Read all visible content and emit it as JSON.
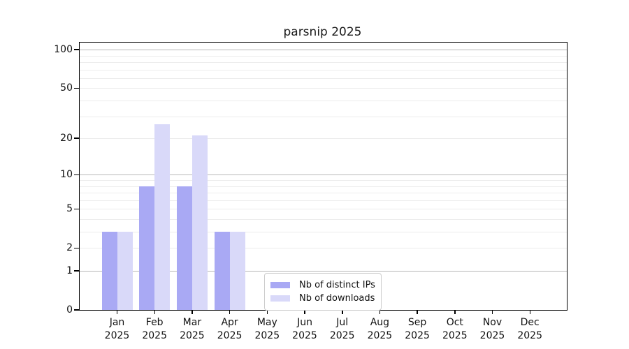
{
  "title": "parsnip 2025",
  "colors": {
    "distinct_ips": "#a9a9f4",
    "downloads": "#d9d9f9",
    "grid_major": "#b8b8b8",
    "grid_minor": "#ececec",
    "axis": "#000000",
    "legend_border": "#cccccc"
  },
  "chart_data": {
    "type": "bar",
    "title": "parsnip 2025",
    "categories": [
      "Jan",
      "Feb",
      "Mar",
      "Apr",
      "May",
      "Jun",
      "Jul",
      "Aug",
      "Sep",
      "Oct",
      "Nov",
      "Dec"
    ],
    "x_year_label": "2025",
    "series": [
      {
        "name": "Nb of distinct IPs",
        "color_key": "distinct_ips",
        "values": [
          3,
          8,
          8,
          3,
          0,
          0,
          0,
          0,
          0,
          0,
          0,
          0
        ]
      },
      {
        "name": "Nb of downloads",
        "color_key": "downloads",
        "values": [
          3,
          26,
          21,
          3,
          0,
          0,
          0,
          0,
          0,
          0,
          0,
          0
        ]
      }
    ],
    "y_axis": {
      "scale": "log10(1+y)",
      "tick_values": [
        0,
        1,
        2,
        5,
        10,
        20,
        50,
        100
      ],
      "major_grid_values": [
        1,
        10,
        100
      ],
      "minor_grid_values": [
        2,
        3,
        4,
        5,
        6,
        7,
        8,
        9,
        20,
        30,
        40,
        50,
        60,
        70,
        80,
        90
      ],
      "ylim": [
        0,
        113
      ]
    },
    "grid": true,
    "legend_position": "lower center"
  },
  "legend": {
    "items": [
      {
        "label": "Nb of distinct IPs",
        "color_key": "distinct_ips"
      },
      {
        "label": "Nb of downloads",
        "color_key": "downloads"
      }
    ]
  }
}
